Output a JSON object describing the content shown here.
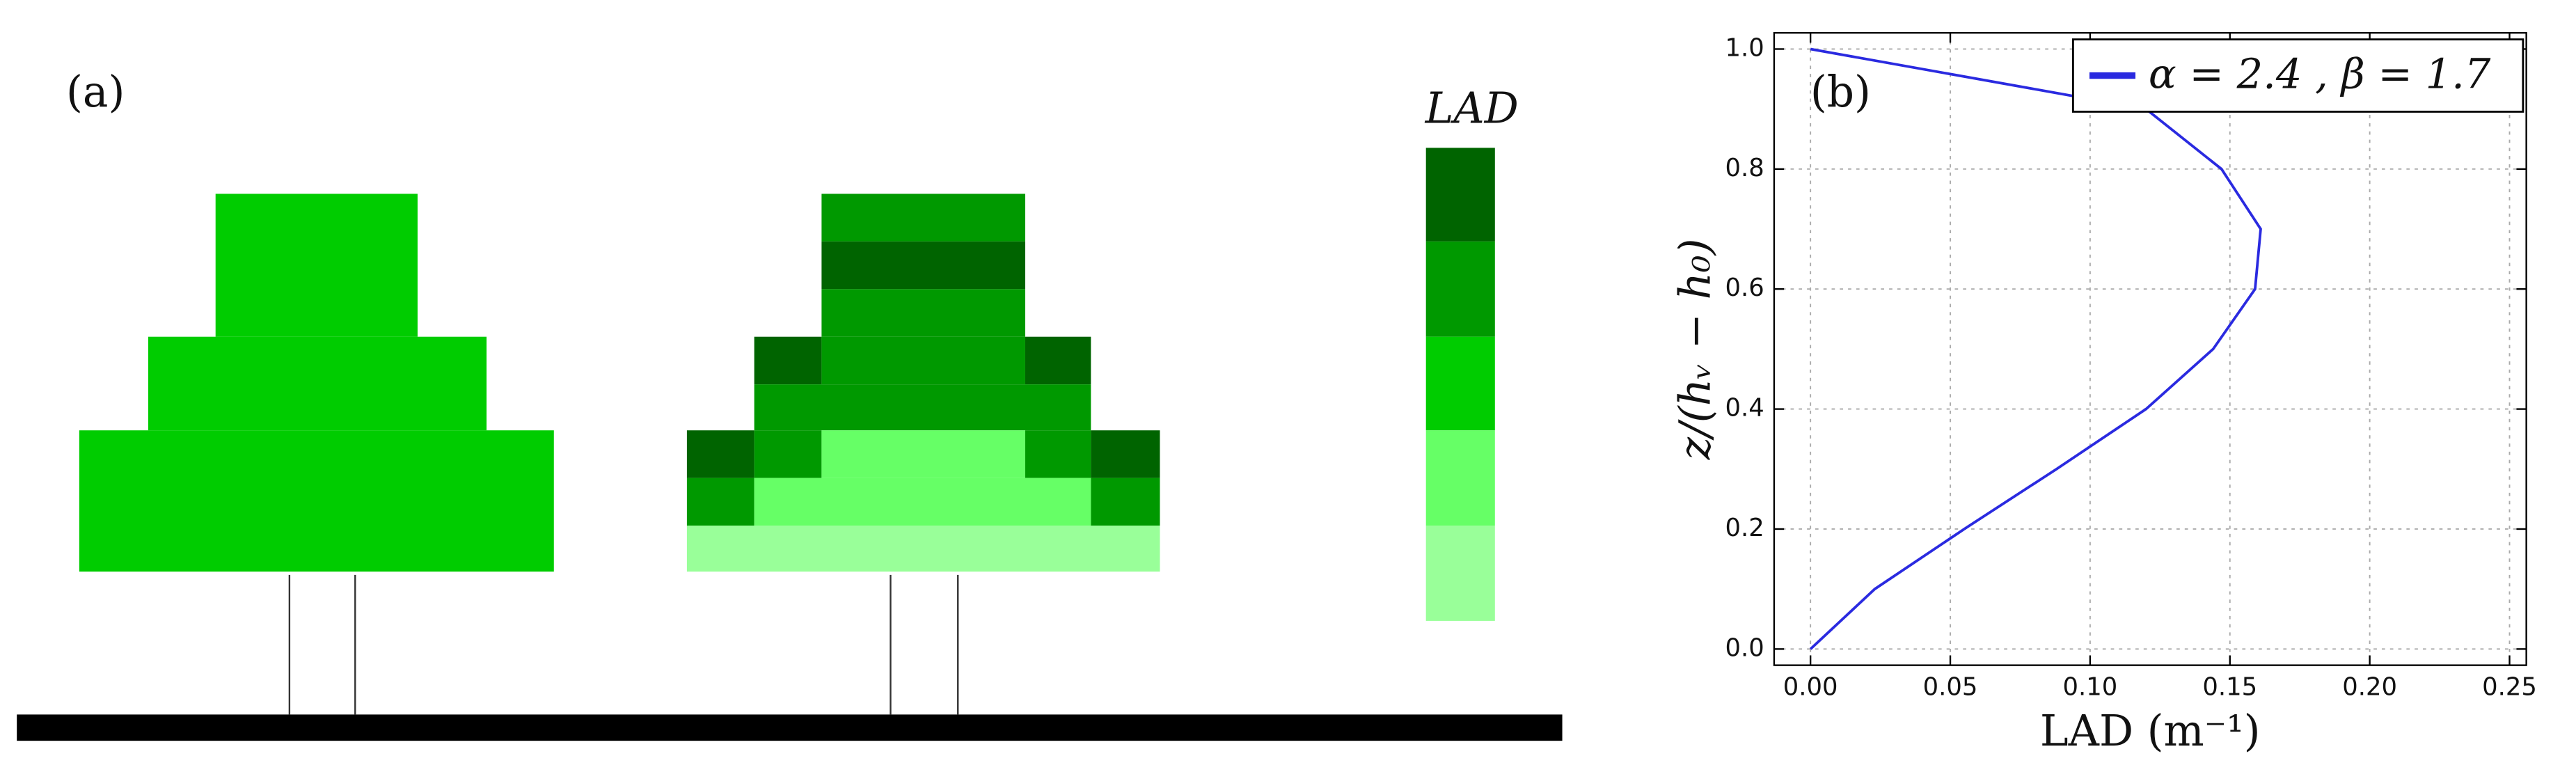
{
  "panel_a": {
    "panel_label": "(a)",
    "colorbar_label": "LAD"
  },
  "chart_data": {
    "type": "line",
    "panel_label": "(b)",
    "xlabel": "LAD (m⁻¹)",
    "ylabel": "z/(hᵥ − h₀)",
    "x": [
      0.0,
      0.023,
      0.055,
      0.088,
      0.12,
      0.144,
      0.159,
      0.161,
      0.147,
      0.12,
      0.0
    ],
    "series": [
      {
        "name": "α = 2.4 , β = 1.7",
        "color": "#2a2ae0",
        "values": [
          0.0,
          0.1,
          0.2,
          0.3,
          0.4,
          0.5,
          0.6,
          0.7,
          0.8,
          0.9,
          1.0
        ]
      }
    ],
    "xlim": [
      -0.013,
      0.256
    ],
    "ylim": [
      -0.027,
      1.027
    ],
    "xticks": [
      {
        "value": 0,
        "label": "0.00"
      },
      {
        "value": 0.05,
        "label": "0.05"
      },
      {
        "value": 0.1,
        "label": "0.10"
      },
      {
        "value": 0.15,
        "label": "0.15"
      },
      {
        "value": 0.2,
        "label": "0.20"
      },
      {
        "value": 0.25,
        "label": "0.25"
      }
    ],
    "yticks": [
      {
        "value": 0,
        "label": "0.0"
      },
      {
        "value": 0.2,
        "label": "0.2"
      },
      {
        "value": 0.4,
        "label": "0.4"
      },
      {
        "value": 0.6,
        "label": "0.6"
      },
      {
        "value": 0.8,
        "label": "0.8"
      },
      {
        "value": 1.0,
        "label": "1.0"
      }
    ],
    "grid": true,
    "legend": "upper right"
  }
}
